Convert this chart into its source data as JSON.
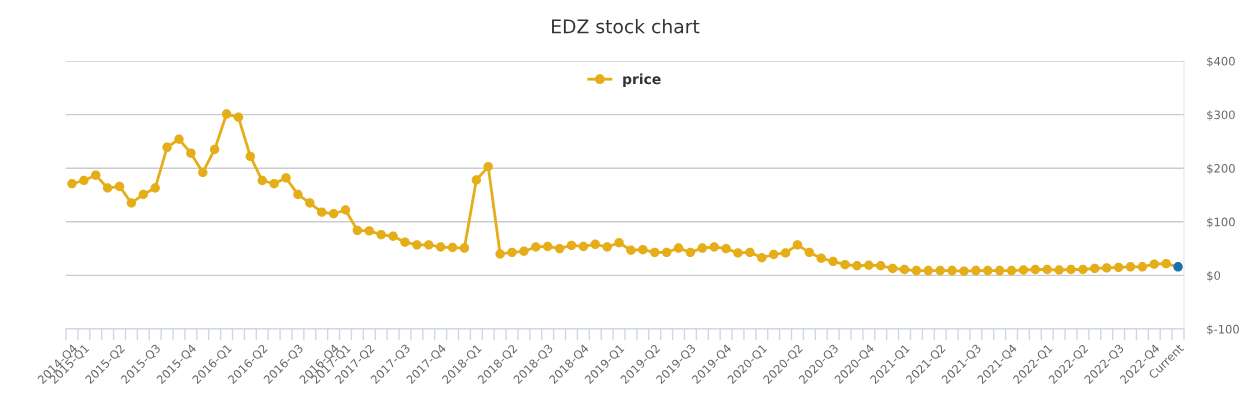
{
  "chart_data": {
    "type": "line",
    "title": "EDZ stock chart",
    "categories": [
      "2014-Q4",
      "2015-Q1",
      null,
      null,
      "2015-Q2",
      null,
      null,
      "2015-Q3",
      null,
      null,
      "2015-Q4",
      null,
      null,
      "2016-Q1",
      null,
      null,
      "2016-Q2",
      null,
      null,
      "2016-Q3",
      null,
      null,
      "2016-Q4",
      "2017-Q1",
      null,
      "2017-Q2",
      null,
      null,
      "2017-Q3",
      null,
      null,
      "2017-Q4",
      null,
      null,
      "2018-Q1",
      null,
      null,
      "2018-Q2",
      null,
      null,
      "2018-Q3",
      null,
      null,
      "2018-Q4",
      null,
      null,
      "2019-Q1",
      null,
      null,
      "2019-Q2",
      null,
      null,
      "2019-Q3",
      null,
      null,
      "2019-Q4",
      null,
      null,
      "2020-Q1",
      null,
      null,
      "2020-Q2",
      null,
      null,
      "2020-Q3",
      null,
      null,
      "2020-Q4",
      null,
      null,
      "2021-Q1",
      null,
      null,
      "2021-Q2",
      null,
      null,
      "2021-Q3",
      null,
      null,
      "2021-Q4",
      null,
      null,
      "2022-Q1",
      null,
      null,
      "2022-Q2",
      null,
      null,
      "2022-Q3",
      null,
      null,
      "2022-Q4",
      null,
      "Current"
    ],
    "series": [
      {
        "name": "price",
        "color": "#e5ad17",
        "colors": [
          "#e5ad17",
          "#e5ad17",
          "#e5ad17",
          "#e5ad17",
          "#e5ad17",
          "#e5ad17",
          "#e5ad17",
          "#e5ad17",
          "#e5ad17",
          "#e5ad17",
          "#e5ad17",
          "#e5ad17",
          "#e5ad17",
          "#e5ad17",
          "#e5ad17",
          "#e5ad17",
          "#e5ad17",
          "#e5ad17",
          "#e5ad17",
          "#e5ad17",
          "#e5ad17",
          "#e5ad17",
          "#e5ad17",
          "#e5ad17",
          "#e5ad17",
          "#e5ad17",
          "#e5ad17",
          "#e5ad17",
          "#e5ad17",
          "#e5ad17",
          "#e5ad17",
          "#e5ad17",
          "#e5ad17",
          "#e5ad17",
          "#e5ad17",
          "#e5ad17",
          "#e5ad17",
          "#e5ad17",
          "#e5ad17",
          "#e5ad17",
          "#e5ad17",
          "#e5ad17",
          "#e5ad17",
          "#e5ad17",
          "#e5ad17",
          "#e5ad17",
          "#e5ad17",
          "#e5ad17",
          "#e5ad17",
          "#e5ad17",
          "#e5ad17",
          "#e5ad17",
          "#e5ad17",
          "#e5ad17",
          "#e5ad17",
          "#e5ad17",
          "#e5ad17",
          "#e5ad17",
          "#e5ad17",
          "#e5ad17",
          "#e5ad17",
          "#e5ad17",
          "#e5ad17",
          "#e5ad17",
          "#e5ad17",
          "#e5ad17",
          "#e5ad17",
          "#e5ad17",
          "#e5ad17",
          "#e5ad17",
          "#e5ad17",
          "#e5ad17",
          "#e5ad17",
          "#e5ad17",
          "#e5ad17",
          "#e5ad17",
          "#e5ad17",
          "#e5ad17",
          "#e5ad17",
          "#e5ad17",
          "#e5ad17",
          "#e5ad17",
          "#e5ad17",
          "#e5ad17",
          "#e5ad17",
          "#e5ad17",
          "#e5ad17",
          "#e5ad17",
          "#e5ad17",
          "#e5ad17",
          "#e5ad17",
          "#e5ad17",
          "#e5ad17",
          "#1a6fae"
        ],
        "values": [
          171,
          177,
          187,
          163,
          166,
          135,
          151,
          163,
          239,
          254,
          228,
          192,
          235,
          301,
          295,
          222,
          177,
          171,
          182,
          151,
          135,
          118,
          115,
          122,
          84,
          83,
          76,
          73,
          62,
          57,
          57,
          53,
          52,
          51,
          178,
          203,
          40,
          43,
          45,
          53,
          54,
          50,
          56,
          54,
          58,
          53,
          61,
          47,
          48,
          43,
          43,
          51,
          43,
          51,
          53,
          50,
          42,
          43,
          33,
          39,
          42,
          57,
          43,
          32,
          26,
          20,
          18,
          19,
          18,
          13,
          11,
          9,
          9,
          9,
          9,
          8,
          9,
          9,
          9,
          9,
          10,
          11,
          11,
          10,
          11,
          11,
          13,
          14,
          15,
          16,
          16,
          21,
          22,
          16
        ]
      }
    ],
    "ylim": [
      -100,
      400
    ],
    "yticks": [
      {
        "value": -100,
        "label": "$-100"
      },
      {
        "value": 0,
        "label": "$0"
      },
      {
        "value": 100,
        "label": "$100"
      },
      {
        "value": 200,
        "label": "$200"
      },
      {
        "value": 300,
        "label": "$300"
      },
      {
        "value": 400,
        "label": "$400"
      }
    ],
    "grid": "y",
    "legend": "top",
    "marker": "circle",
    "line_style": "solid"
  }
}
